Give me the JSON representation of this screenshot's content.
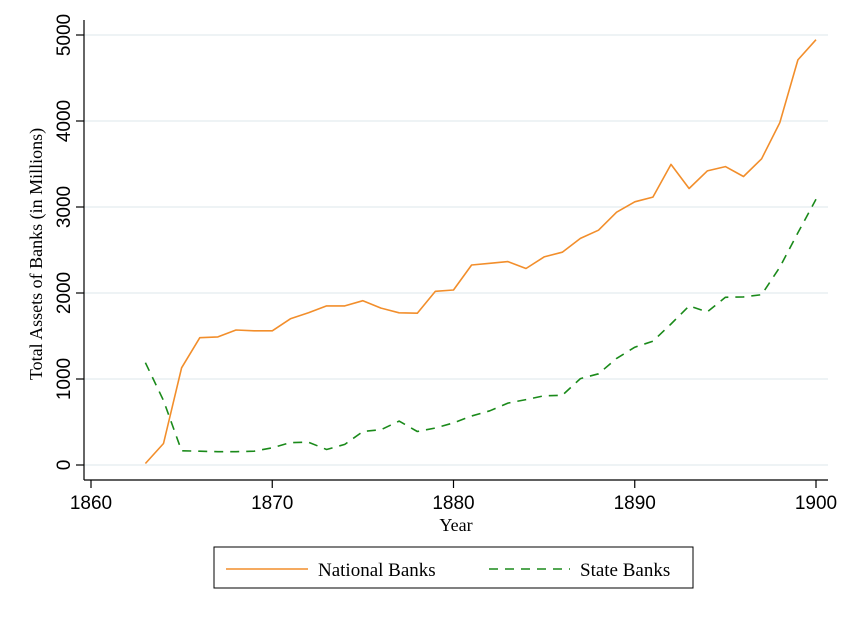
{
  "chart_data": {
    "type": "line",
    "title": "",
    "xlabel": "Year",
    "ylabel": "Total Assets of Banks (in Millions)",
    "xlim": [
      1860,
      1900
    ],
    "ylim": [
      0,
      5000
    ],
    "xticks": [
      1860,
      1870,
      1880,
      1890,
      1900
    ],
    "yticks": [
      0,
      1000,
      2000,
      3000,
      4000,
      5000
    ],
    "grid": true,
    "legend_position": "bottom",
    "series": [
      {
        "name": "National Banks",
        "color": "#f28e2b",
        "style": "solid",
        "points": [
          [
            1863,
            17
          ],
          [
            1864,
            250
          ],
          [
            1865,
            1130
          ],
          [
            1866,
            1480
          ],
          [
            1867,
            1490
          ],
          [
            1868,
            1570
          ],
          [
            1869,
            1560
          ],
          [
            1870,
            1560
          ],
          [
            1871,
            1700
          ],
          [
            1872,
            1770
          ],
          [
            1873,
            1850
          ],
          [
            1874,
            1850
          ],
          [
            1875,
            1910
          ],
          [
            1876,
            1825
          ],
          [
            1877,
            1770
          ],
          [
            1878,
            1765
          ],
          [
            1879,
            2020
          ],
          [
            1880,
            2035
          ],
          [
            1881,
            2325
          ],
          [
            1882,
            2345
          ],
          [
            1883,
            2365
          ],
          [
            1884,
            2285
          ],
          [
            1885,
            2420
          ],
          [
            1886,
            2475
          ],
          [
            1887,
            2635
          ],
          [
            1888,
            2730
          ],
          [
            1889,
            2940
          ],
          [
            1890,
            3060
          ],
          [
            1891,
            3115
          ],
          [
            1892,
            3495
          ],
          [
            1893,
            3215
          ],
          [
            1894,
            3420
          ],
          [
            1895,
            3470
          ],
          [
            1896,
            3355
          ],
          [
            1897,
            3560
          ],
          [
            1898,
            3980
          ],
          [
            1899,
            4710
          ],
          [
            1900,
            4945
          ]
        ]
      },
      {
        "name": "State Banks",
        "color": "#1a8a1a",
        "style": "dashed",
        "points": [
          [
            1863,
            1190
          ],
          [
            1864,
            750
          ],
          [
            1865,
            165
          ],
          [
            1866,
            160
          ],
          [
            1867,
            155
          ],
          [
            1868,
            155
          ],
          [
            1869,
            160
          ],
          [
            1870,
            200
          ],
          [
            1871,
            260
          ],
          [
            1872,
            265
          ],
          [
            1873,
            180
          ],
          [
            1874,
            240
          ],
          [
            1875,
            390
          ],
          [
            1876,
            410
          ],
          [
            1877,
            510
          ],
          [
            1878,
            390
          ],
          [
            1879,
            430
          ],
          [
            1880,
            490
          ],
          [
            1881,
            570
          ],
          [
            1882,
            630
          ],
          [
            1883,
            720
          ],
          [
            1884,
            760
          ],
          [
            1885,
            805
          ],
          [
            1886,
            810
          ],
          [
            1887,
            1005
          ],
          [
            1888,
            1060
          ],
          [
            1889,
            1240
          ],
          [
            1890,
            1370
          ],
          [
            1891,
            1440
          ],
          [
            1892,
            1640
          ],
          [
            1893,
            1850
          ],
          [
            1894,
            1780
          ],
          [
            1895,
            1950
          ],
          [
            1896,
            1955
          ],
          [
            1897,
            1980
          ],
          [
            1898,
            2300
          ],
          [
            1899,
            2700
          ],
          [
            1900,
            3090
          ]
        ]
      }
    ]
  }
}
